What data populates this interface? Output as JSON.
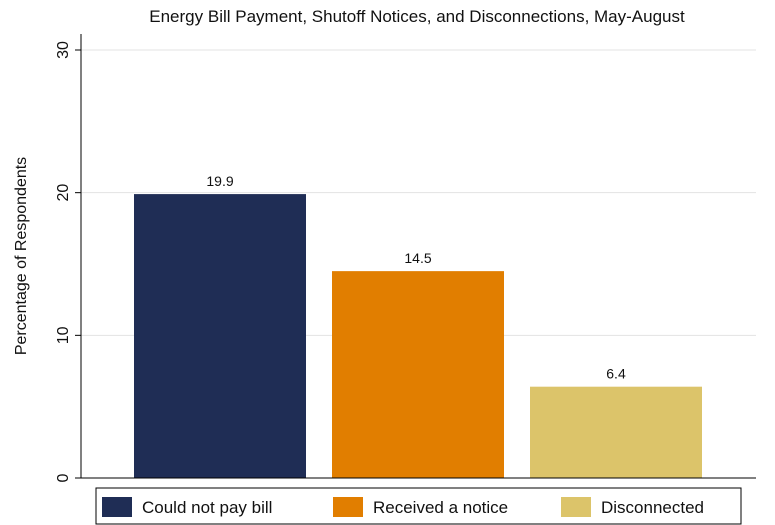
{
  "chart_data": {
    "type": "bar",
    "title": "Energy Bill Payment, Shutoff Notices, and Disconnections, May-August",
    "xlabel": "",
    "ylabel": "Percentage of Respondents",
    "ylim": [
      0,
      30
    ],
    "yticks": [
      0,
      10,
      20,
      30
    ],
    "grid": true,
    "legend_position": "bottom",
    "bars": [
      {
        "name": "Could not pay bill",
        "value": 19.9,
        "label": "19.9",
        "color": "#1f2d55"
      },
      {
        "name": "Received a notice",
        "value": 14.5,
        "label": "14.5",
        "color": "#e17e00"
      },
      {
        "name": "Disconnected",
        "value": 6.4,
        "label": "6.4",
        "color": "#dcc46a"
      }
    ]
  }
}
